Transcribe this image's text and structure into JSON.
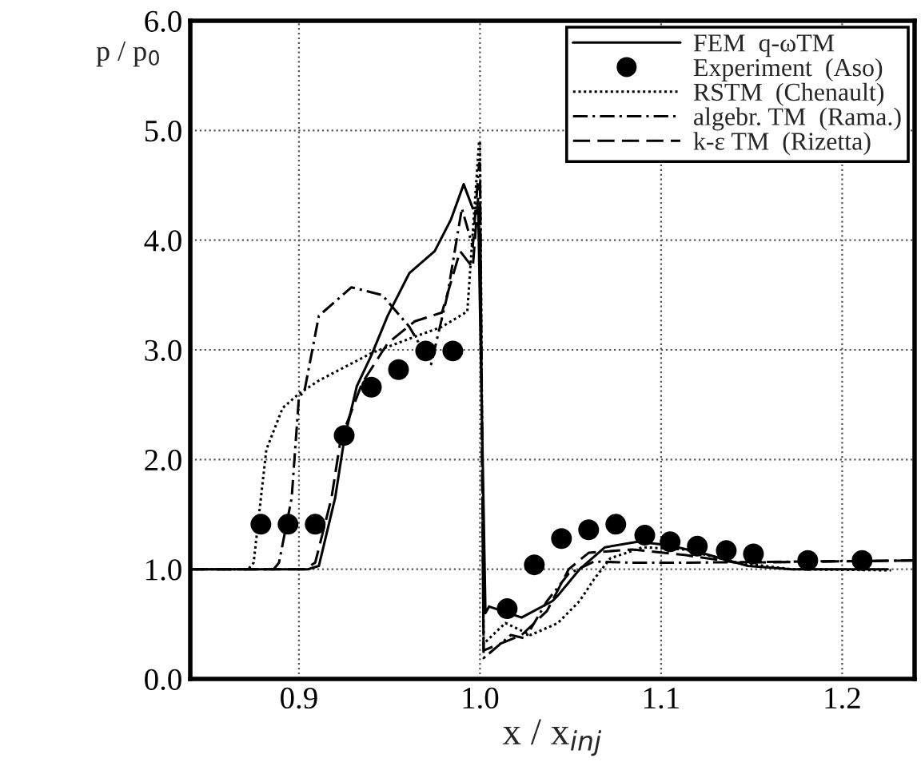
{
  "chart_data": {
    "type": "line",
    "xlabel": "x / x$_{inj}$",
    "ylabel": "p / p$_{0}$",
    "xlim": [
      0.84,
      1.24
    ],
    "ylim": [
      0,
      6
    ],
    "xticks": [
      0.9,
      {
        "value": 1.0,
        "label": "1.0"
      },
      1.1,
      1.2
    ],
    "yticks": [
      {
        "value": 0,
        "label": "0.0"
      },
      {
        "value": 1,
        "label": "1.0"
      },
      {
        "value": 2,
        "label": "2.0"
      },
      {
        "value": 3,
        "label": "3.0"
      },
      {
        "value": 4,
        "label": "4.0"
      },
      {
        "value": 5,
        "label": "5.0"
      },
      {
        "value": 6,
        "label": "6.0"
      }
    ],
    "grid": true,
    "legend": "top right",
    "series": [
      {
        "name": "FEM  q-ωTM",
        "color": "#000000",
        "line_style": "solid",
        "marker": "none",
        "x": [
          0.84,
          0.905,
          0.911,
          0.92,
          0.925,
          0.932,
          0.94,
          0.949,
          0.961,
          0.975,
          0.984,
          0.991,
          0.996,
          0.999,
          1.003,
          1.005,
          1.023,
          1.04,
          1.043,
          1.055,
          1.069,
          1.087,
          1.104,
          1.122,
          1.148,
          1.172,
          1.225
        ],
        "values": [
          1.0,
          1.0,
          1.03,
          1.65,
          2.18,
          2.67,
          2.95,
          3.31,
          3.7,
          3.9,
          4.19,
          4.51,
          4.29,
          4.3,
          0.6,
          0.66,
          0.56,
          0.71,
          0.76,
          1.0,
          1.2,
          1.25,
          1.22,
          1.15,
          1.03,
          1.0,
          1.0
        ]
      },
      {
        "name": "Experiment  (Aso)",
        "type": "scatter",
        "color": "#000000",
        "marker": "circle",
        "x": [
          0.879,
          0.894,
          0.909,
          0.925,
          0.94,
          0.955,
          0.97,
          0.985,
          1.015,
          1.03,
          1.045,
          1.06,
          1.075,
          1.091,
          1.105,
          1.12,
          1.136,
          1.151,
          1.181,
          1.211
        ],
        "values": [
          1.41,
          1.41,
          1.41,
          2.22,
          2.66,
          2.82,
          2.99,
          2.99,
          0.64,
          1.04,
          1.28,
          1.36,
          1.41,
          1.31,
          1.25,
          1.21,
          1.17,
          1.14,
          1.08,
          1.08
        ]
      },
      {
        "name": "RSTM  (Chenault)",
        "color": "#000000",
        "line_style": "dotted",
        "marker": "none",
        "x": [
          0.84,
          0.872,
          0.875,
          0.879,
          0.882,
          0.891,
          0.9,
          0.911,
          0.94,
          0.964,
          0.979,
          0.993,
          0.9995,
          1.0,
          1.002,
          1.014,
          1.028,
          1.043,
          1.055,
          1.063,
          1.072,
          1.09,
          1.113,
          1.142,
          1.172,
          1.227
        ],
        "values": [
          1.0,
          1.0,
          1.06,
          1.65,
          2.09,
          2.47,
          2.6,
          2.72,
          2.97,
          3.12,
          3.21,
          3.35,
          4.9,
          4.9,
          0.32,
          0.51,
          0.4,
          0.51,
          0.71,
          0.91,
          1.1,
          1.2,
          1.18,
          1.06,
          1.0,
          0.99
        ]
      },
      {
        "name": "algebr. TM  (Rama.)",
        "color": "#000000",
        "line_style": "dashdot",
        "marker": "none",
        "x": [
          0.84,
          0.886,
          0.889,
          0.896,
          0.9,
          0.903,
          0.911,
          0.929,
          0.946,
          0.961,
          0.973,
          0.982,
          0.99,
          0.996,
          0.9995,
          1.0,
          1.002,
          1.017,
          1.025,
          1.037,
          1.049,
          1.063,
          1.084,
          1.113,
          1.24
        ],
        "values": [
          1.0,
          1.0,
          1.06,
          1.65,
          2.57,
          2.62,
          3.31,
          3.57,
          3.5,
          3.21,
          2.87,
          3.5,
          4.29,
          3.94,
          4.7,
          4.7,
          0.19,
          0.4,
          0.37,
          0.71,
          0.96,
          1.07,
          1.06,
          1.06,
          1.08
        ]
      },
      {
        "name": "k-ε TM  (Rizetta)",
        "color": "#000000",
        "line_style": "dashed",
        "marker": "none",
        "x": [
          0.84,
          0.903,
          0.909,
          0.918,
          0.923,
          0.935,
          0.949,
          0.964,
          0.979,
          0.989,
          0.996,
          0.9995,
          1.0,
          1.002,
          1.023,
          1.037,
          1.049,
          1.06,
          1.084,
          1.113,
          1.142,
          1.24
        ],
        "values": [
          1.0,
          1.0,
          1.06,
          1.65,
          2.18,
          2.7,
          3.06,
          3.26,
          3.34,
          3.9,
          3.75,
          4.5,
          4.5,
          0.26,
          0.4,
          0.62,
          1.0,
          1.15,
          1.18,
          1.13,
          1.06,
          1.08
        ]
      }
    ]
  }
}
